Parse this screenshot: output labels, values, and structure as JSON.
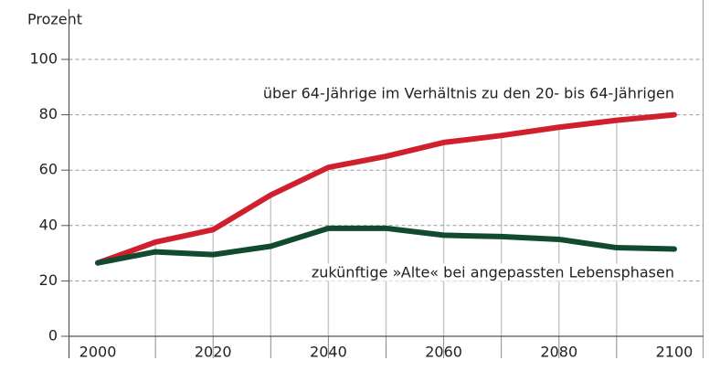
{
  "chart_data": {
    "type": "line",
    "y_label": "Prozent",
    "x": [
      2000,
      2010,
      2020,
      2030,
      2040,
      2050,
      2060,
      2070,
      2080,
      2090,
      2100
    ],
    "series": [
      {
        "name": "über 64-Jährige im Verhältnis zu den 20- bis 64-Jährigen",
        "color": "#d0202e",
        "values": [
          26.5,
          34,
          38.5,
          51,
          61,
          65,
          70,
          72.5,
          75.5,
          78,
          80
        ]
      },
      {
        "name": "zukünftige »Alte« bei angepassten Lebensphasen",
        "color": "#124a2f",
        "values": [
          26.5,
          30.5,
          29.5,
          32.5,
          39,
          39,
          36.5,
          36,
          35,
          32,
          31.5
        ]
      }
    ],
    "xlim": [
      1995,
      2105
    ],
    "xticks": [
      2000,
      2020,
      2040,
      2060,
      2080,
      2100
    ],
    "ylim": [
      0,
      100
    ],
    "yticks": [
      0,
      20,
      40,
      60,
      80,
      100
    ],
    "grid": true
  }
}
